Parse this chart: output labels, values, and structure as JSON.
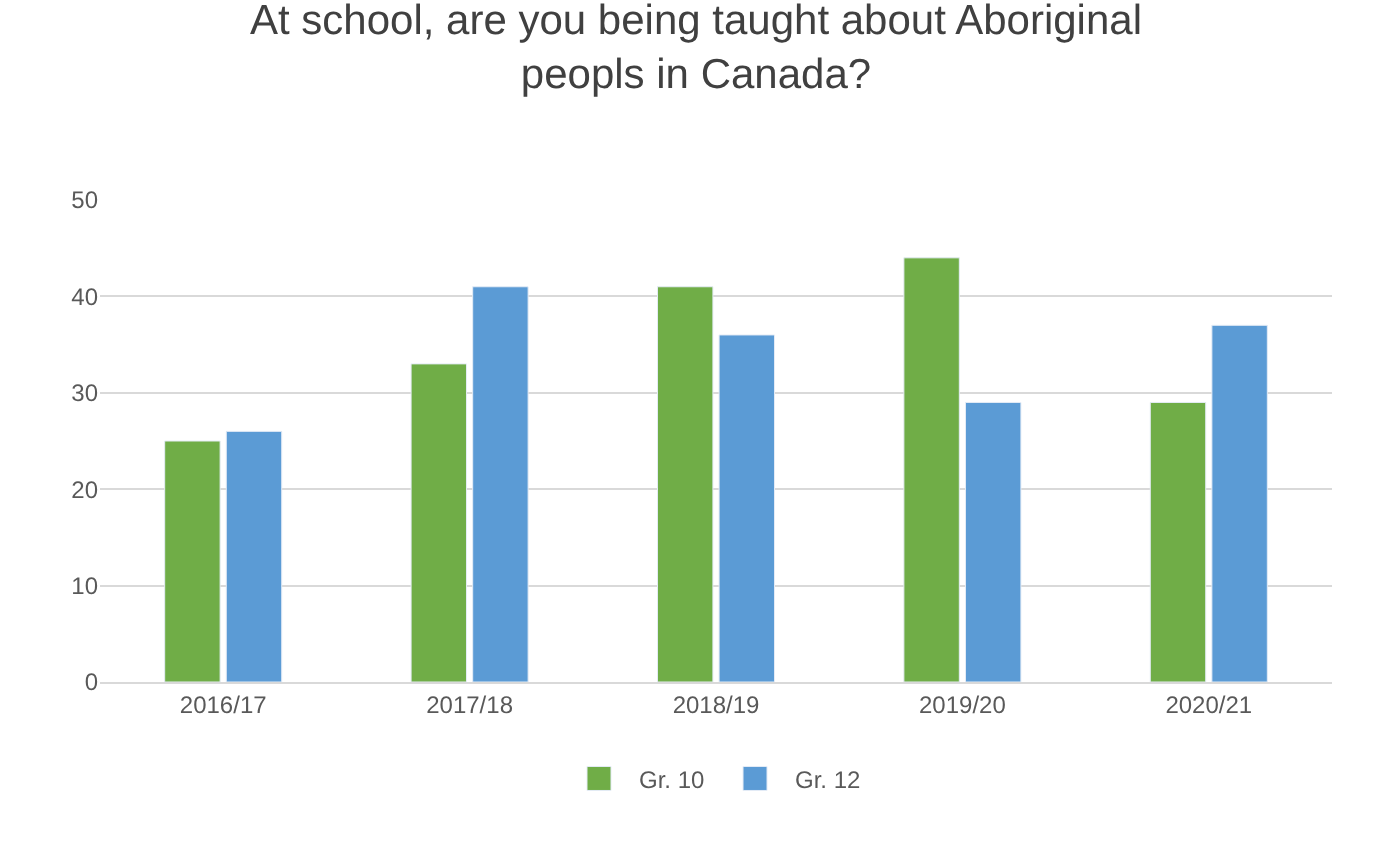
{
  "chart_data": {
    "type": "bar",
    "title": "At school, are you being taught about Aboriginal\npeopls in Canada?",
    "categories": [
      "2016/17",
      "2017/18",
      "2018/19",
      "2019/20",
      "2020/21"
    ],
    "series": [
      {
        "name": "Gr. 10",
        "color": "#70ad47",
        "values": [
          25,
          33,
          41,
          44,
          29
        ]
      },
      {
        "name": "Gr. 12",
        "color": "#5b9bd5",
        "values": [
          26,
          41,
          36,
          29,
          37
        ]
      }
    ],
    "ylim": [
      0,
      50
    ],
    "yticks": [
      0,
      10,
      20,
      30,
      40,
      50
    ],
    "grid": "y",
    "legend": "bottom"
  }
}
